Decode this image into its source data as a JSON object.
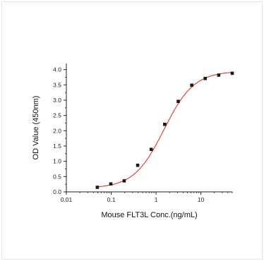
{
  "chart_data": {
    "type": "scatter",
    "xlabel": "Mouse FLT3L Conc.(ng/mL)",
    "ylabel": "OD Value (450nm)",
    "x_scale": "log",
    "xlim": [
      0.01,
      50
    ],
    "ylim": [
      0.0,
      4.2
    ],
    "x_ticks": [
      0.01,
      0.1,
      1,
      10
    ],
    "x_tick_labels": [
      "0.01",
      "0.1",
      "1",
      "10"
    ],
    "y_ticks": [
      0.0,
      0.5,
      1.0,
      1.5,
      2.0,
      2.5,
      3.0,
      3.5,
      4.0
    ],
    "y_tick_labels": [
      "0.0",
      "0.5",
      "1.0",
      "1.5",
      "2.0",
      "2.5",
      "3.0",
      "3.5",
      "4.0"
    ],
    "grid": false,
    "legend": "none",
    "series": [
      {
        "marker": "square",
        "color": "#1a1a1a",
        "x": [
          0.049,
          0.098,
          0.195,
          0.39,
          0.78,
          1.56,
          3.125,
          6.25,
          12.5,
          25,
          50
        ],
        "y": [
          0.15,
          0.26,
          0.36,
          0.87,
          1.39,
          2.21,
          2.96,
          3.49,
          3.71,
          3.82,
          3.88
        ]
      }
    ],
    "fit_curve": {
      "color": "#e8312a",
      "model": "4PL",
      "bottom": 0.12,
      "top": 3.95,
      "ec50": 1.5,
      "hill": 1.3
    }
  }
}
